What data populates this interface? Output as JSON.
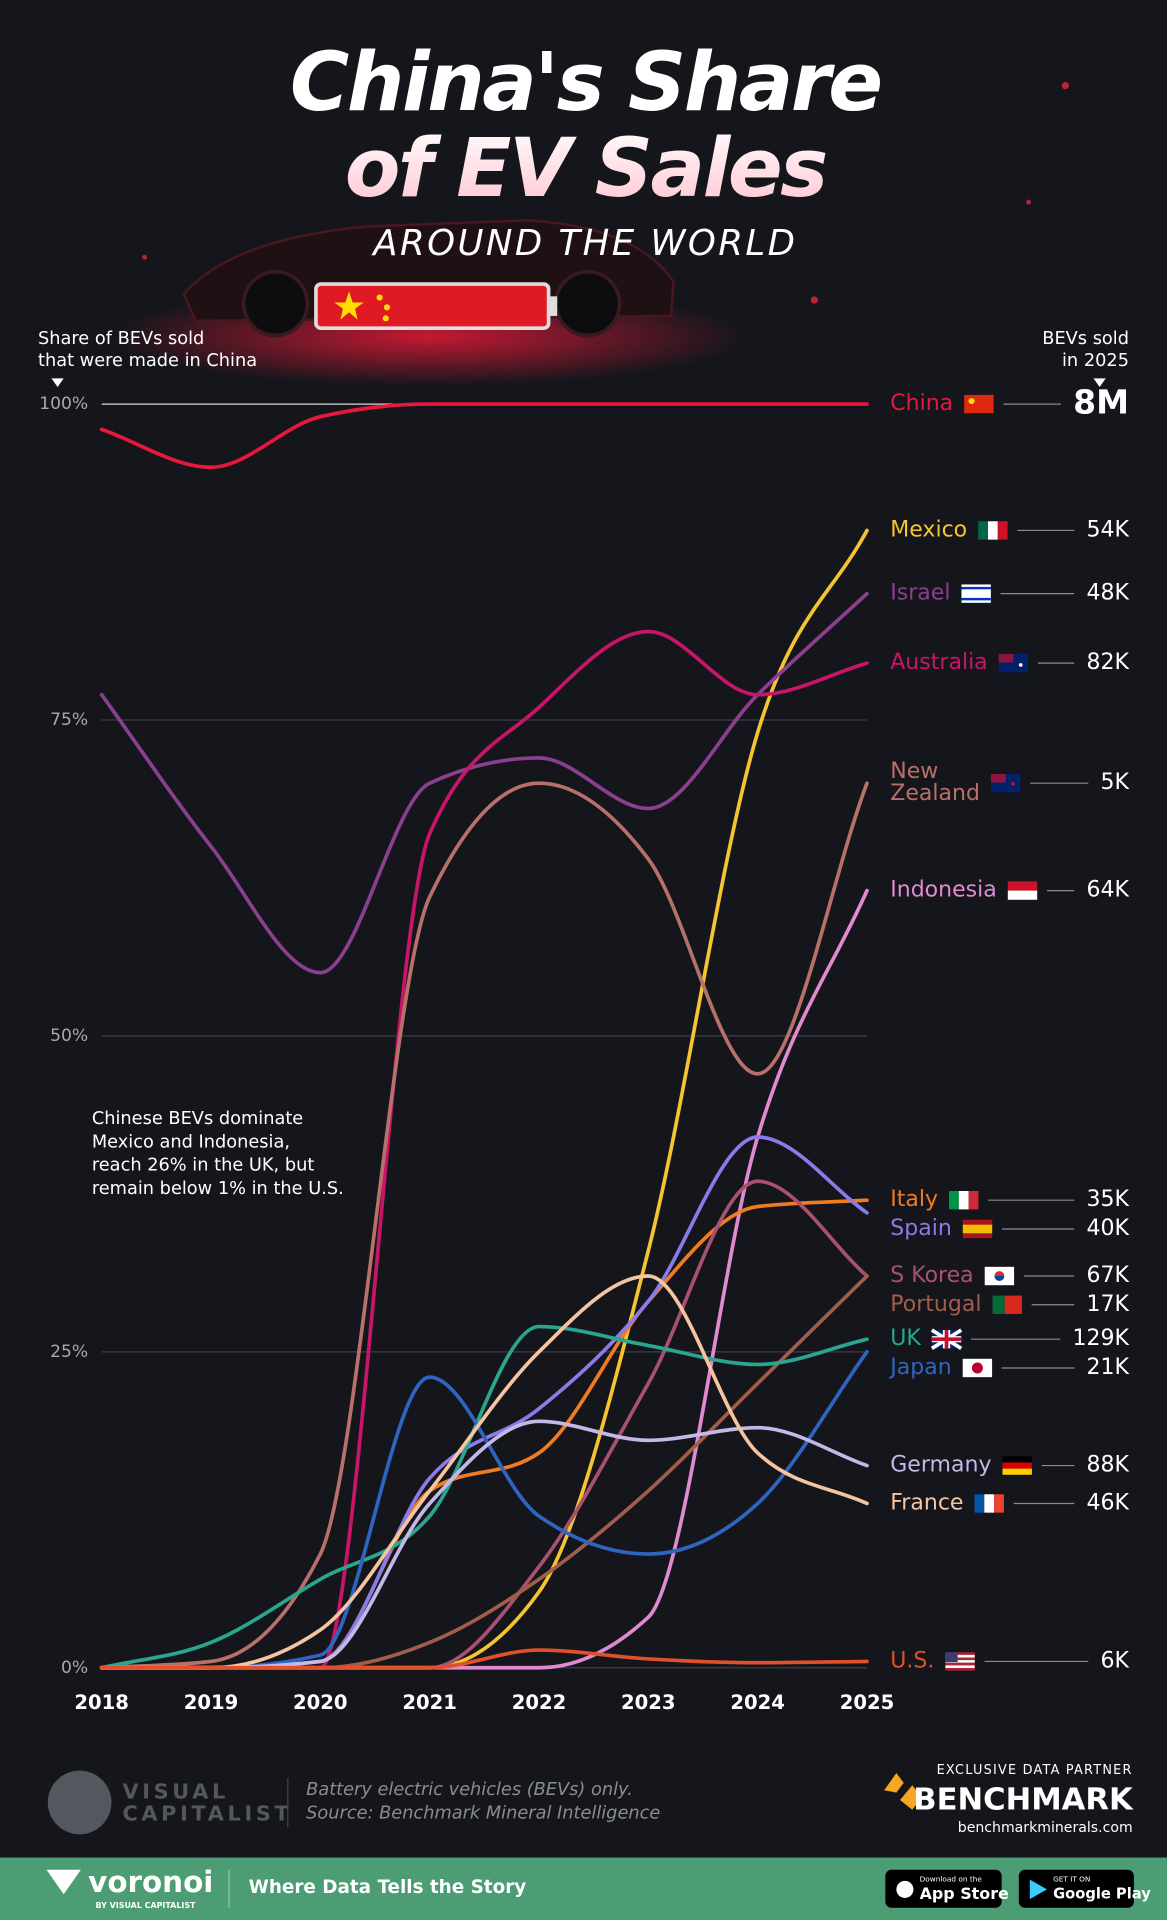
{
  "header": {
    "title_lines": [
      "China's Share",
      "of EV Sales"
    ],
    "subtitle": "AROUND THE WORLD"
  },
  "chart_data": {
    "type": "line",
    "y_note": [
      "Share of BEVs sold",
      "that were made in China"
    ],
    "sales_note": [
      "BEVs sold",
      "in 2025"
    ],
    "annotation": [
      "Chinese BEVs dominate",
      "Mexico and Indonesia,",
      "reach 26% in the UK, but",
      "remain below 1% in the U.S."
    ],
    "x": [
      2018,
      2019,
      2020,
      2021,
      2022,
      2023,
      2024,
      2025
    ],
    "xlim": [
      2018,
      2025
    ],
    "xticks": [
      2018,
      2019,
      2020,
      2021,
      2022,
      2023,
      2024,
      2025
    ],
    "ylim": [
      0,
      100
    ],
    "yticks": [
      {
        "value": 0,
        "label": "0%"
      },
      {
        "value": 25,
        "label": "25%"
      },
      {
        "value": 50,
        "label": "50%"
      },
      {
        "value": 75,
        "label": "75%"
      },
      {
        "value": 100,
        "label": "100%"
      }
    ],
    "grid": true,
    "series": [
      {
        "name": "China",
        "color": "#e8173e",
        "values": [
          98,
          95,
          99,
          100,
          100,
          100,
          100,
          100
        ],
        "sales_2025": "8M"
      },
      {
        "name": "Mexico",
        "color": "#f5c431",
        "values": [
          0,
          0,
          0,
          0,
          6,
          33,
          74,
          90
        ],
        "sales_2025": "54K"
      },
      {
        "name": "Israel",
        "color": "#8a3f8f",
        "values": [
          77,
          65,
          55,
          70,
          72,
          68,
          77,
          85
        ],
        "sales_2025": "48K"
      },
      {
        "name": "Australia",
        "color": "#c8156a",
        "values": [
          0,
          0,
          0,
          66,
          76,
          82,
          77,
          79.5
        ],
        "sales_2025": "82K"
      },
      {
        "name": "New Zealand",
        "color": "#b8706a",
        "values": [
          0,
          0.5,
          9,
          61,
          70,
          64,
          47,
          70
        ],
        "sales_2025": "5K"
      },
      {
        "name": "Indonesia",
        "color": "#e08ad0",
        "values": [
          0,
          0,
          0,
          0,
          0,
          4,
          42,
          61.5
        ],
        "sales_2025": "64K"
      },
      {
        "name": "Italy",
        "color": "#f07c22",
        "values": [
          0,
          0,
          0.5,
          14,
          17,
          29,
          36.5,
          37
        ],
        "sales_2025": "35K"
      },
      {
        "name": "Spain",
        "color": "#8b7ae8",
        "values": [
          0,
          0,
          0.5,
          15,
          20.5,
          29,
          42,
          36
        ],
        "sales_2025": "40K"
      },
      {
        "name": "S Korea",
        "color": "#a85070",
        "values": [
          0,
          0,
          0,
          0,
          8,
          22.5,
          38.5,
          31
        ],
        "sales_2025": "67K"
      },
      {
        "name": "Portugal",
        "color": "#a05e4a",
        "values": [
          0,
          0,
          0,
          2,
          7,
          14,
          22.5,
          31
        ],
        "sales_2025": "17K"
      },
      {
        "name": "UK",
        "color": "#2aa58e",
        "values": [
          0,
          2,
          7,
          12,
          27,
          25.5,
          24,
          26
        ],
        "sales_2025": "129K"
      },
      {
        "name": "Japan",
        "color": "#2f64c0",
        "values": [
          0,
          0,
          1,
          23,
          12,
          9,
          13,
          25
        ],
        "sales_2025": "21K"
      },
      {
        "name": "Germany",
        "color": "#c4b8e6",
        "values": [
          0,
          0,
          0.5,
          13,
          19.5,
          18,
          19,
          16
        ],
        "sales_2025": "88K"
      },
      {
        "name": "France",
        "color": "#f5c4a0",
        "values": [
          0,
          0,
          3,
          14,
          25,
          31,
          17,
          13
        ],
        "sales_2025": "46K"
      },
      {
        "name": "U.S.",
        "color": "#e0502a",
        "values": [
          0,
          0,
          0,
          0,
          1.4,
          0.7,
          0.4,
          0.5
        ],
        "sales_2025": "6K"
      }
    ]
  },
  "footer": {
    "notes": [
      "Battery electric vehicles (BEVs) only.",
      "Source: Benchmark Mineral Intelligence"
    ],
    "vc_logo": [
      "VISUAL",
      "CAPITALIST"
    ],
    "partner_note": "EXCLUSIVE DATA PARTNER",
    "partner": "BENCHMARK",
    "partner_url": "benchmarkminerals.com",
    "brand": "voronoi",
    "brand_sub": "BY VISUAL CAPITALIST",
    "tagline": "Where Data Tells the Story",
    "app_store": [
      "Download on the",
      "App Store"
    ],
    "google_play": [
      "GET IT ON",
      "Google Play"
    ]
  }
}
